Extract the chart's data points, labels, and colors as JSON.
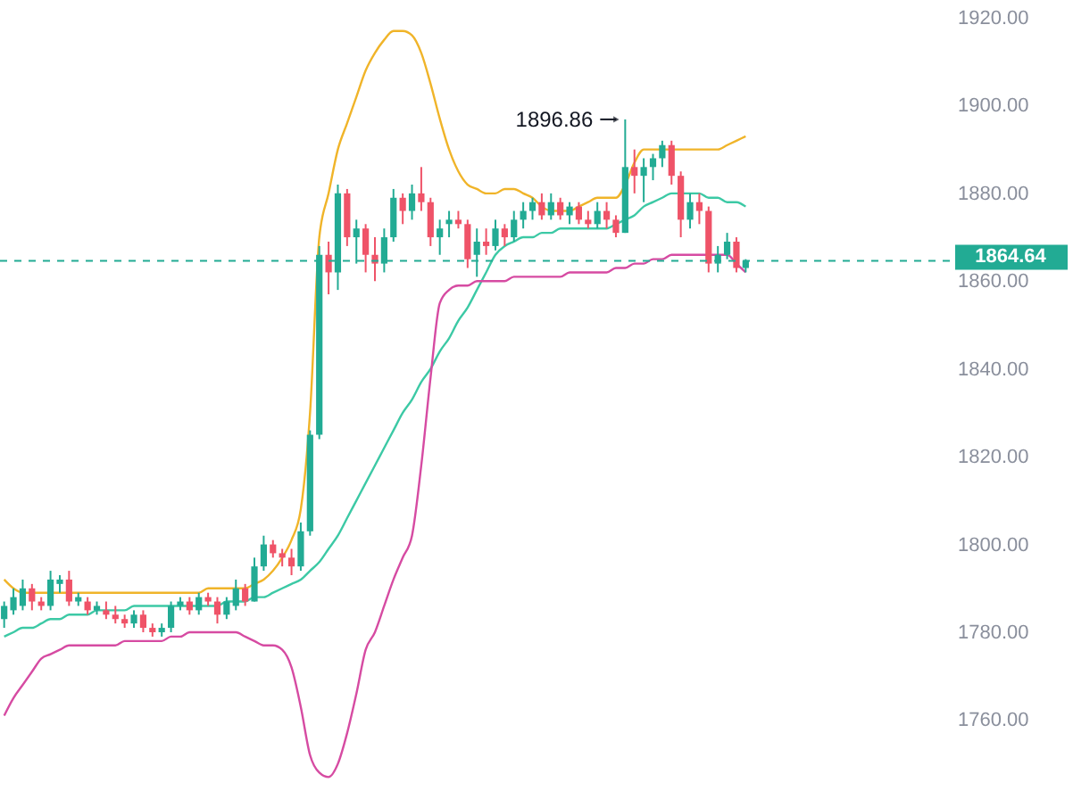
{
  "chart_data": {
    "type": "candlestick",
    "categories": [
      null,
      null,
      null,
      null,
      null,
      null,
      null,
      null,
      null,
      null,
      null,
      null,
      null,
      null,
      null,
      null,
      null,
      null,
      null,
      null,
      null,
      null,
      null,
      null,
      null,
      null,
      null,
      null,
      null,
      null,
      null,
      null,
      null,
      null,
      null,
      null,
      null,
      null,
      null,
      null,
      null,
      null,
      null,
      null,
      null,
      null,
      null,
      null,
      null,
      null,
      null,
      null,
      null,
      null,
      null,
      null,
      null,
      null,
      null,
      null,
      null,
      null,
      null,
      null,
      null,
      null,
      null,
      null,
      null,
      null,
      null,
      null,
      null,
      null,
      null,
      null,
      null,
      null,
      null,
      null,
      null
    ],
    "ohlc": [
      [
        1783,
        1787,
        1781,
        1786
      ],
      [
        1785,
        1790,
        1784,
        1788
      ],
      [
        1786,
        1792,
        1785,
        1790
      ],
      [
        1790,
        1791,
        1785,
        1787
      ],
      [
        1787,
        1788,
        1785,
        1786
      ],
      [
        1786,
        1794,
        1785,
        1792
      ],
      [
        1791,
        1793,
        1789,
        1792
      ],
      [
        1792,
        1794,
        1786,
        1787
      ],
      [
        1787,
        1789,
        1786,
        1788
      ],
      [
        1787,
        1788,
        1784,
        1785
      ],
      [
        1785,
        1787,
        1784,
        1786
      ],
      [
        1785,
        1787,
        1783,
        1784
      ],
      [
        1784,
        1786,
        1782,
        1783
      ],
      [
        1783,
        1784,
        1781,
        1782
      ],
      [
        1782,
        1785,
        1781,
        1784
      ],
      [
        1784,
        1785,
        1780,
        1781
      ],
      [
        1781,
        1782,
        1779,
        1780
      ],
      [
        1780,
        1782,
        1779,
        1781
      ],
      [
        1781,
        1787,
        1780,
        1786
      ],
      [
        1786,
        1788,
        1785,
        1787
      ],
      [
        1787,
        1788,
        1784,
        1785
      ],
      [
        1785,
        1789,
        1784,
        1788
      ],
      [
        1788,
        1789,
        1786,
        1787
      ],
      [
        1787,
        1788,
        1782,
        1784
      ],
      [
        1784,
        1788,
        1783,
        1787
      ],
      [
        1786,
        1792,
        1785,
        1790
      ],
      [
        1790,
        1791,
        1786,
        1787
      ],
      [
        1787,
        1797,
        1787,
        1795
      ],
      [
        1795,
        1802,
        1794,
        1800
      ],
      [
        1800,
        1801,
        1797,
        1798
      ],
      [
        1798,
        1799,
        1795,
        1797
      ],
      [
        1797,
        1799,
        1793,
        1795
      ],
      [
        1795,
        1805,
        1794,
        1803
      ],
      [
        1803,
        1826,
        1802,
        1825
      ],
      [
        1825,
        1868,
        1824,
        1866
      ],
      [
        1866,
        1869,
        1857,
        1862
      ],
      [
        1862,
        1882,
        1858,
        1880
      ],
      [
        1880,
        1881,
        1868,
        1870
      ],
      [
        1870,
        1874,
        1864,
        1872
      ],
      [
        1872,
        1873,
        1862,
        1866
      ],
      [
        1866,
        1870,
        1860,
        1864
      ],
      [
        1864,
        1872,
        1862,
        1870
      ],
      [
        1870,
        1881,
        1869,
        1879
      ],
      [
        1879,
        1880,
        1873,
        1876
      ],
      [
        1876,
        1882,
        1874,
        1880
      ],
      [
        1880,
        1886,
        1876,
        1878
      ],
      [
        1878,
        1879,
        1868,
        1870
      ],
      [
        1870,
        1874,
        1866,
        1872
      ],
      [
        1873,
        1876,
        1870,
        1874
      ],
      [
        1874,
        1876,
        1872,
        1873
      ],
      [
        1873,
        1874,
        1863,
        1865
      ],
      [
        1866,
        1872,
        1861,
        1869
      ],
      [
        1869,
        1872,
        1866,
        1868
      ],
      [
        1868,
        1874,
        1867,
        1872
      ],
      [
        1872,
        1873,
        1868,
        1870
      ],
      [
        1870,
        1876,
        1869,
        1874
      ],
      [
        1874,
        1878,
        1872,
        1876
      ],
      [
        1876,
        1879,
        1874,
        1878
      ],
      [
        1878,
        1880,
        1874,
        1875
      ],
      [
        1875,
        1880,
        1874,
        1878
      ],
      [
        1878,
        1879,
        1874,
        1875
      ],
      [
        1875,
        1878,
        1873,
        1877
      ],
      [
        1877,
        1878,
        1873,
        1874
      ],
      [
        1874,
        1876,
        1872,
        1873
      ],
      [
        1873,
        1878,
        1872,
        1876
      ],
      [
        1876,
        1878,
        1872,
        1874
      ],
      [
        1874,
        1875,
        1870,
        1871
      ],
      [
        1871,
        1896.86,
        1871,
        1886
      ],
      [
        1886,
        1890,
        1880,
        1884
      ],
      [
        1884,
        1888,
        1878,
        1886
      ],
      [
        1886,
        1889,
        1883,
        1888
      ],
      [
        1888,
        1892,
        1886,
        1891
      ],
      [
        1891,
        1892,
        1882,
        1884
      ],
      [
        1884,
        1885,
        1870,
        1874
      ],
      [
        1874,
        1880,
        1872,
        1878
      ],
      [
        1878,
        1880,
        1873,
        1876
      ],
      [
        1876,
        1877,
        1862,
        1864
      ],
      [
        1864,
        1868,
        1862,
        1866
      ],
      [
        1866,
        1871,
        1865,
        1869
      ],
      [
        1869,
        1870,
        1862,
        1863
      ],
      [
        1863,
        1865,
        1862,
        1864.64
      ]
    ],
    "colors": [
      "#22ab94",
      "#22ab94",
      "#22ab94",
      "#ef5368",
      "#ef5368",
      "#22ab94",
      "#22ab94",
      "#ef5368",
      "#22ab94",
      "#ef5368",
      "#22ab94",
      "#ef5368",
      "#ef5368",
      "#ef5368",
      "#22ab94",
      "#ef5368",
      "#ef5368",
      "#22ab94",
      "#22ab94",
      "#22ab94",
      "#ef5368",
      "#22ab94",
      "#ef5368",
      "#ef5368",
      "#22ab94",
      "#22ab94",
      "#ef5368",
      "#22ab94",
      "#22ab94",
      "#ef5368",
      "#ef5368",
      "#ef5368",
      "#22ab94",
      "#22ab94",
      "#22ab94",
      "#ef5368",
      "#22ab94",
      "#ef5368",
      "#22ab94",
      "#ef5368",
      "#ef5368",
      "#22ab94",
      "#22ab94",
      "#ef5368",
      "#22ab94",
      "#ef5368",
      "#ef5368",
      "#22ab94",
      "#22ab94",
      "#ef5368",
      "#ef5368",
      "#22ab94",
      "#ef5368",
      "#22ab94",
      "#ef5368",
      "#22ab94",
      "#22ab94",
      "#22ab94",
      "#ef5368",
      "#22ab94",
      "#ef5368",
      "#22ab94",
      "#ef5368",
      "#ef5368",
      "#22ab94",
      "#ef5368",
      "#ef5368",
      "#22ab94",
      "#ef5368",
      "#22ab94",
      "#22ab94",
      "#22ab94",
      "#ef5368",
      "#ef5368",
      "#22ab94",
      "#ef5368",
      "#ef5368",
      "#22ab94",
      "#22ab94",
      "#ef5368",
      "#22ab94"
    ],
    "series": [
      {
        "type": "line",
        "color": "#f0b429",
        "values": [
          1792,
          1790,
          1789,
          1789,
          1789,
          1789,
          1789,
          1789,
          1789,
          1789,
          1789,
          1789,
          1789,
          1789,
          1789,
          1789,
          1789,
          1789,
          1789,
          1789,
          1789,
          1789,
          1790,
          1790,
          1790,
          1790,
          1790,
          1791,
          1792,
          1794,
          1797,
          1801,
          1808,
          1830,
          1870,
          1880,
          1890,
          1896,
          1902,
          1908,
          1912,
          1915,
          1917,
          1917,
          1916,
          1912,
          1905,
          1897,
          1890,
          1885,
          1882,
          1881,
          1880,
          1880,
          1881,
          1881,
          1880,
          1879,
          1877,
          1876,
          1876,
          1876,
          1877,
          1878,
          1879,
          1879,
          1879,
          1882,
          1887,
          1890,
          1890,
          1890,
          1890,
          1890,
          1890,
          1890,
          1890,
          1890,
          1891,
          1892,
          1893
        ]
      },
      {
        "type": "line",
        "color": "#3cc9a5",
        "values": [
          1779,
          1780,
          1781,
          1781,
          1782,
          1783,
          1783,
          1784,
          1784,
          1784,
          1785,
          1785,
          1785,
          1785,
          1786,
          1786,
          1786,
          1786,
          1786,
          1786,
          1786,
          1786,
          1786,
          1786,
          1787,
          1787,
          1787,
          1788,
          1788,
          1789,
          1790,
          1791,
          1792,
          1794,
          1796,
          1799,
          1802,
          1806,
          1810,
          1814,
          1818,
          1822,
          1826,
          1830,
          1833,
          1837,
          1840,
          1844,
          1847,
          1851,
          1854,
          1858,
          1862,
          1866,
          1868,
          1869,
          1870,
          1870,
          1871,
          1871,
          1872,
          1872,
          1872,
          1872,
          1872,
          1872,
          1873,
          1874,
          1875,
          1877,
          1878,
          1879,
          1880,
          1880,
          1880,
          1880,
          1879,
          1879,
          1878,
          1878,
          1877
        ]
      },
      {
        "type": "line",
        "color": "#d64ba2",
        "values": [
          1761,
          1765,
          1768,
          1771,
          1774,
          1775,
          1776,
          1777,
          1777,
          1777,
          1777,
          1777,
          1777,
          1778,
          1778,
          1778,
          1778,
          1778,
          1779,
          1779,
          1780,
          1780,
          1780,
          1780,
          1780,
          1780,
          1779,
          1778,
          1777,
          1777,
          1776,
          1772,
          1763,
          1752,
          1748,
          1747,
          1750,
          1757,
          1766,
          1776,
          1780,
          1786,
          1792,
          1797,
          1802,
          1818,
          1838,
          1855,
          1858,
          1859,
          1859,
          1860,
          1860,
          1860,
          1860,
          1861,
          1861,
          1861,
          1861,
          1861,
          1861,
          1862,
          1862,
          1862,
          1862,
          1862,
          1863,
          1863,
          1864,
          1864,
          1865,
          1865,
          1866,
          1866,
          1866,
          1866,
          1866,
          1866,
          1866,
          1864,
          1862
        ]
      }
    ],
    "ref_lines": [
      {
        "axis": "y",
        "value": 1864.64,
        "label": "1864.64",
        "color": "#22ab94",
        "line_style": "dashed"
      }
    ],
    "annotations": [
      "1896.86"
    ],
    "ylim": [
      1742,
      1920
    ],
    "yticks": [
      {
        "value": 1760,
        "label": "1760.00"
      },
      {
        "value": 1780,
        "label": "1780.00"
      },
      {
        "value": 1800,
        "label": "1800.00"
      },
      {
        "value": 1820,
        "label": "1820.00"
      },
      {
        "value": 1840,
        "label": "1840.00"
      },
      {
        "value": 1860,
        "label": "1860.00"
      },
      {
        "value": 1880,
        "label": "1880.00"
      },
      {
        "value": 1900,
        "label": "1900.00"
      },
      {
        "value": 1920,
        "label": "1920.00"
      }
    ],
    "grid": false
  }
}
